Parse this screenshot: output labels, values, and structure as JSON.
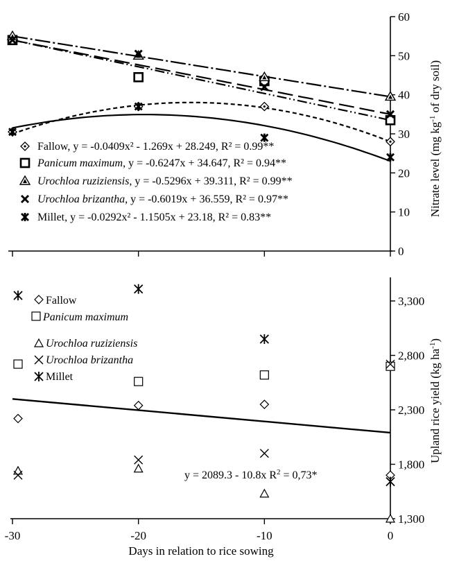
{
  "chart_data": [
    {
      "type": "scatter",
      "panel": "top",
      "ylabel_parts": {
        "main": "Nitrate level  (mg kg",
        "sup": "-1",
        "tail": " of dry soil)"
      },
      "ylim": [
        0,
        60
      ],
      "y_ticks": [
        "0",
        "10",
        "20",
        "30",
        "40",
        "50",
        "60"
      ],
      "x_ticks": [
        "-30",
        "-20",
        "-10",
        "0"
      ],
      "xlim": [
        -30,
        0
      ],
      "legend_placement": "bottom-left",
      "series": [
        {
          "name": "Fallow",
          "marker": "diamond-dot",
          "x": [
            -30,
            -20,
            -10,
            0
          ],
          "y": [
            30.5,
            37.0,
            37.0,
            28.0
          ],
          "line_style": "short-dash",
          "fit": {
            "kind": "quad",
            "a": -0.0409,
            "b": -1.269,
            "c": 28.249
          },
          "legend_prefix": "",
          "legend_suffix": "Fallow, y = -0.0409x² - 1.269x + 28.249, R² = 0.99**"
        },
        {
          "name": "Panicum maximum",
          "marker": "square-bold",
          "x": [
            -30,
            -20,
            -10,
            0
          ],
          "y": [
            54.0,
            44.5,
            43.5,
            33.5
          ],
          "line_style": "dash-dot-dot",
          "fit": {
            "kind": "lin",
            "a": -0.6247,
            "b": 34.647
          },
          "legend_italic": "Panicum maximum",
          "legend_suffix": ", y = -0.6247x + 34.647, R² = 0.94**"
        },
        {
          "name": "Urochloa ruziziensis",
          "marker": "triangle-filled",
          "x": [
            -30,
            -20,
            -10,
            0
          ],
          "y": [
            55.0,
            50.0,
            44.5,
            39.5
          ],
          "line_style": "dash-dot-long",
          "fit": {
            "kind": "lin",
            "a": -0.5296,
            "b": 39.311
          },
          "legend_italic": "Urochloa ruziziensis",
          "legend_suffix": ", y = -0.5296x + 39.311, R² = 0.99**"
        },
        {
          "name": "Urochloa brizantha",
          "marker": "x-bold",
          "x": [
            -30,
            -20,
            -10,
            0
          ],
          "y": [
            54.0,
            50.5,
            42.0,
            35.0
          ],
          "line_style": "long-dash",
          "fit": {
            "kind": "lin",
            "a": -0.6019,
            "b": 36.559
          },
          "legend_italic": "Urochloa brizantha",
          "legend_suffix": ", y = -0.6019x + 36.559, R² = 0.97**"
        },
        {
          "name": "Millet",
          "marker": "star-bold",
          "x": [
            -30,
            -20,
            -10,
            0
          ],
          "y": [
            30.5,
            37.0,
            29.0,
            24.0
          ],
          "line_style": "solid",
          "fit": {
            "kind": "quad",
            "a": -0.0292,
            "b": -1.1505,
            "c": 23.18
          },
          "legend_suffix": "Millet, y = -0.0292x² - 1.1505x + 23.18, R² = 0.83**"
        }
      ]
    },
    {
      "type": "scatter",
      "panel": "bottom",
      "xlabel": "Days in relation to rice sowing",
      "ylabel_parts": {
        "main": "Upland rice yield (kg ha",
        "sup": "-1",
        "tail": ")"
      },
      "ylim": [
        1300,
        3500
      ],
      "y_ticks": [
        "1,300",
        "1,800",
        "2,300",
        "2,800",
        "3,300"
      ],
      "y_tick_values": [
        1300,
        1800,
        2300,
        2800,
        3300
      ],
      "x_ticks": [
        "-30",
        "-20",
        "-10",
        "0"
      ],
      "xlim": [
        -30,
        0
      ],
      "legend_placement": "top-left",
      "series": [
        {
          "name": "Fallow",
          "marker": "diamond-open",
          "x": [
            -30,
            -20,
            -10,
            0
          ],
          "y": [
            2220,
            2340,
            2350,
            1700
          ]
        },
        {
          "name": "Panicum maximum",
          "italic": true,
          "marker": "square-open",
          "x": [
            -30,
            -20,
            -10,
            0
          ],
          "y": [
            2720,
            2560,
            2620,
            2700
          ]
        },
        {
          "name": "Urochloa ruziziensis",
          "italic": true,
          "marker": "triangle-open",
          "x": [
            -30,
            -20,
            -10,
            0
          ],
          "y": [
            1740,
            1760,
            1530,
            1300
          ]
        },
        {
          "name": "Urochloa brizantha",
          "italic": true,
          "marker": "x-thin",
          "x": [
            -30,
            -20,
            -10,
            0
          ],
          "y": [
            1700,
            1840,
            1900,
            2720
          ]
        },
        {
          "name": "Millet",
          "marker": "star-thin",
          "x": [
            -30,
            -20,
            -10,
            0
          ],
          "y": [
            3350,
            3410,
            2950,
            1640
          ]
        }
      ],
      "fit": {
        "kind": "lin",
        "intercept": 2089.3,
        "slope": -10.8
      },
      "equation_text": "y = 2089.3 - 10.8x  R",
      "equation_sup": "2",
      "equation_tail": " = 0,73*"
    }
  ]
}
